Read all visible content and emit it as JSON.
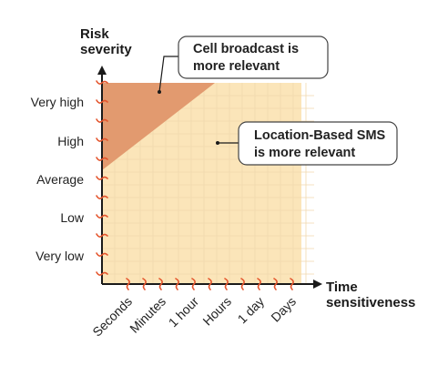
{
  "diagram": {
    "y_axis_title": [
      "Risk",
      "severity"
    ],
    "x_axis_title": [
      "Time",
      "sensitiveness"
    ],
    "y_levels": [
      "Very high",
      "High",
      "Average",
      "Low",
      "Very low"
    ],
    "x_levels": [
      "Seconds",
      "Minutes",
      "1 hour",
      "Hours",
      "1 day",
      "Days"
    ],
    "regions": [
      {
        "name": "cell-broadcast",
        "lines": [
          "Cell broadcast is",
          "more relevant"
        ]
      },
      {
        "name": "location-based-sms",
        "lines": [
          "Location-Based SMS",
          "is more relevant"
        ]
      }
    ],
    "colors": {
      "cell_region": "#E29A6F",
      "sms_region": "#FBE5B9",
      "accent": "#E4552D",
      "grid": "#F1D9AE",
      "axis": "#1A1A1A"
    }
  }
}
